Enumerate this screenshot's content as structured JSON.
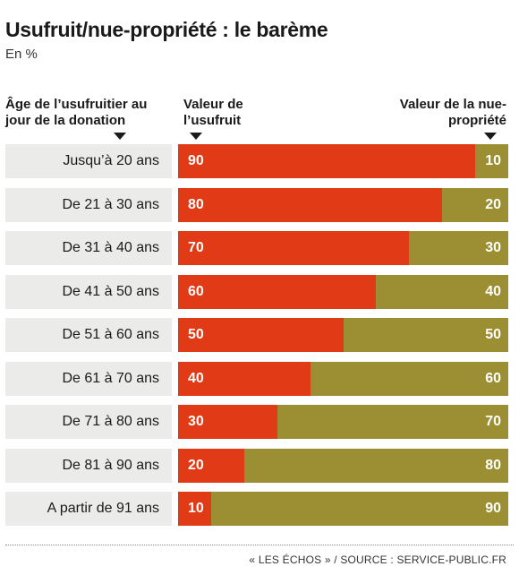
{
  "title": "Usufruit/nue-propriété : le barème",
  "subtitle": "En %",
  "headers": {
    "age": "Âge de l’usufruitier au jour de la donation",
    "usufruit": "Valeur de l’usufruit",
    "nue": "Valeur de la nue-propriété"
  },
  "colors": {
    "usufruit": "#e03a17",
    "nue": "#9b8e33"
  },
  "source": "« LES ÉCHOS » / SOURCE : SERVICE-PUBLIC.FR",
  "chart_data": {
    "type": "bar",
    "orientation": "horizontal",
    "stacked": true,
    "categories": [
      "Jusqu’à 20 ans",
      "De 21 à 30 ans",
      "De 31 à 40 ans",
      "De 41 à 50 ans",
      "De 51 à 60 ans",
      "De 61 à 70 ans",
      "De 71 à 80 ans",
      "De 81 à 90 ans",
      "A partir de 91 ans"
    ],
    "series": [
      {
        "name": "Valeur de l’usufruit",
        "values": [
          90,
          80,
          70,
          60,
          50,
          40,
          30,
          20,
          10
        ]
      },
      {
        "name": "Valeur de la nue-propriété",
        "values": [
          10,
          20,
          30,
          40,
          50,
          60,
          70,
          80,
          90
        ]
      }
    ],
    "xlim": [
      0,
      100
    ]
  }
}
